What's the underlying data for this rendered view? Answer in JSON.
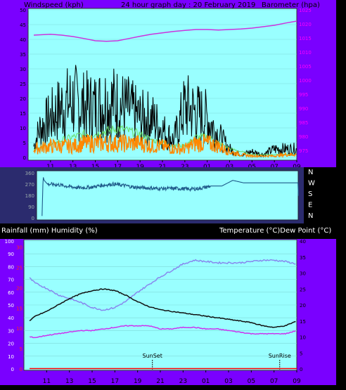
{
  "chart_data": [
    {
      "type": "line",
      "header": {
        "left": "Windspeed (kph)",
        "center": "24 hour graph day : 20 February 2019",
        "right": "Barometer (hpa)"
      },
      "x_ticks": [
        "11",
        "13",
        "15",
        "17",
        "19",
        "21",
        "23",
        "01",
        "03",
        "05",
        "07",
        "09"
      ],
      "x_range_hours": [
        9,
        33
      ],
      "y_left": {
        "ticks": [
          0,
          5,
          10,
          15,
          20,
          25,
          30,
          35,
          40,
          45,
          50
        ],
        "range": [
          0,
          50
        ],
        "color": "#000000"
      },
      "y_right": {
        "ticks": [
          975,
          980,
          985,
          990,
          995,
          1000,
          1005,
          1010,
          1015,
          1020,
          1025
        ],
        "range": [
          972.5,
          1025
        ],
        "color": "#ff00ff"
      },
      "series": [
        {
          "key": "barometer",
          "axis": "right",
          "color": "#cc33dd",
          "x": [
            9.5,
            11,
            12,
            13,
            14,
            15,
            16,
            17,
            18,
            19,
            20,
            21,
            22,
            23,
            24,
            25,
            26,
            27,
            28,
            29,
            30,
            31,
            32,
            33
          ],
          "y": [
            1016,
            1016.3,
            1016,
            1015.5,
            1014.8,
            1014,
            1013.8,
            1014,
            1014.8,
            1015.6,
            1016.3,
            1016.8,
            1017.3,
            1017.7,
            1018,
            1018,
            1017.8,
            1018,
            1018.2,
            1018.5,
            1019,
            1019.5,
            1020.3,
            1021
          ]
        },
        {
          "key": "wind_gust",
          "axis": "left",
          "color": "#000000",
          "x": [
            9.5,
            10,
            11,
            12,
            13,
            14,
            15,
            16,
            17,
            18,
            19,
            20,
            21,
            22,
            23,
            24,
            25,
            26,
            27,
            28,
            29,
            30,
            31,
            32,
            33
          ],
          "y": [
            4,
            10,
            14,
            18,
            20,
            18,
            18,
            20,
            19,
            17,
            14,
            14,
            10,
            6,
            18,
            16,
            14,
            8,
            3,
            1,
            2,
            1,
            3,
            3,
            3
          ]
        },
        {
          "key": "wind_avg",
          "axis": "left",
          "color": "#66dd66",
          "x": [
            9.5,
            11,
            12,
            13,
            14,
            15,
            16,
            17,
            18,
            19,
            20,
            21,
            22,
            23,
            24,
            25,
            26,
            27,
            28,
            29,
            30,
            31,
            32,
            33
          ],
          "y": [
            3,
            4,
            6,
            7,
            8,
            8,
            9,
            10,
            9,
            8,
            6,
            5,
            4,
            4,
            7,
            7,
            5,
            3,
            2,
            1,
            1,
            1,
            1,
            1
          ]
        },
        {
          "key": "wind_speed",
          "axis": "left",
          "color": "#ff8800",
          "x": [
            9.5,
            11,
            12,
            13,
            14,
            15,
            16,
            17,
            18,
            19,
            20,
            21,
            22,
            23,
            24,
            25,
            26,
            27,
            28,
            29,
            30,
            31,
            32,
            33
          ],
          "y": [
            3,
            4,
            4,
            4,
            5,
            5,
            5,
            5,
            5,
            5,
            4,
            4,
            3,
            3,
            5,
            5,
            4,
            2,
            1,
            0.5,
            0.5,
            0.5,
            1,
            1
          ]
        }
      ]
    },
    {
      "type": "line",
      "x_range_hours": [
        9,
        33
      ],
      "y_left": {
        "ticks": [
          0,
          90,
          180,
          270,
          360
        ],
        "range": [
          0,
          360
        ]
      },
      "y_right_labels": [
        "N",
        "W",
        "S",
        "E",
        "N"
      ],
      "series": [
        {
          "key": "wind_direction",
          "color": "#1f5a8a",
          "x": [
            9.5,
            9.6,
            9.7,
            10,
            11,
            12,
            13,
            14,
            15,
            16,
            17,
            18,
            19,
            20,
            21,
            22,
            23,
            24,
            25,
            26,
            27,
            28,
            29,
            30,
            31,
            32,
            33,
            33.05
          ],
          "y": [
            15,
            330,
            300,
            270,
            265,
            250,
            240,
            245,
            260,
            270,
            260,
            245,
            240,
            235,
            235,
            235,
            230,
            235,
            255,
            255,
            300,
            280,
            280,
            280,
            280,
            280,
            280,
            20
          ]
        }
      ]
    },
    {
      "type": "line",
      "header": {
        "left": "Rainfall (mm)  Humidity (%)",
        "right": "Temperature (°C)Dew Point (°C)"
      },
      "x_ticks": [
        "11",
        "13",
        "15",
        "17",
        "19",
        "21",
        "23",
        "01",
        "03",
        "05",
        "07",
        "09"
      ],
      "x_range_hours": [
        9,
        33
      ],
      "y_left": {
        "ticks": [
          0,
          10,
          20,
          30,
          40,
          50,
          60,
          70,
          80,
          90,
          100
        ],
        "range": [
          0,
          100
        ]
      },
      "y_left_red": {
        "ticks": [
          "0",
          "5",
          "10",
          "15",
          "20",
          "25",
          "30"
        ]
      },
      "y_right": {
        "ticks": [
          0,
          5,
          10,
          15,
          20,
          25,
          30,
          35,
          40
        ],
        "range": [
          0,
          40
        ]
      },
      "annotations": [
        {
          "text": "SunSet",
          "x_hours": 20.3
        },
        {
          "text": "SunRise",
          "x_hours": 31.5
        }
      ],
      "series": [
        {
          "key": "humidity",
          "axis": "left",
          "color": "#8888ee",
          "x": [
            9.5,
            10,
            11,
            12,
            13,
            14,
            15,
            16,
            17,
            18,
            19,
            20,
            21,
            22,
            23,
            24,
            25,
            26,
            27,
            28,
            29,
            30,
            31,
            32,
            33
          ],
          "y": [
            71,
            67,
            63,
            58,
            55,
            52,
            48,
            46,
            48,
            53,
            60,
            66,
            72,
            77,
            82,
            85,
            84,
            83,
            83,
            83,
            84,
            85,
            85,
            84,
            82
          ]
        },
        {
          "key": "temperature",
          "axis": "right",
          "color": "#111111",
          "x": [
            9.5,
            10,
            11,
            12,
            13,
            14,
            15,
            16,
            17,
            18,
            19,
            20,
            21,
            22,
            23,
            24,
            25,
            26,
            27,
            28,
            29,
            30,
            31,
            32,
            33
          ],
          "y": [
            15,
            16.5,
            18,
            20,
            22,
            23.5,
            24.5,
            25,
            24.5,
            23,
            21,
            19.5,
            18.5,
            18,
            17.5,
            17,
            16.5,
            16,
            15.5,
            15,
            14.5,
            13.5,
            13,
            13.5,
            15
          ]
        },
        {
          "key": "dew_point",
          "axis": "right",
          "color": "#cc33ee",
          "x": [
            9.5,
            10,
            11,
            12,
            13,
            14,
            15,
            16,
            17,
            18,
            19,
            20,
            21,
            22,
            23,
            24,
            25,
            26,
            27,
            28,
            29,
            30,
            31,
            32,
            33
          ],
          "y": [
            10,
            9.8,
            10.5,
            11,
            11.5,
            12,
            12,
            12.5,
            13,
            13.5,
            13.5,
            13.5,
            12.5,
            12.5,
            13,
            13,
            12.5,
            12.5,
            12,
            11.5,
            11,
            11,
            11,
            11,
            12
          ]
        },
        {
          "key": "rainfall",
          "axis": "left_red",
          "color": "#ff0000",
          "x": [
            9.5,
            33
          ],
          "y": [
            0.3,
            0.3
          ]
        }
      ]
    }
  ]
}
